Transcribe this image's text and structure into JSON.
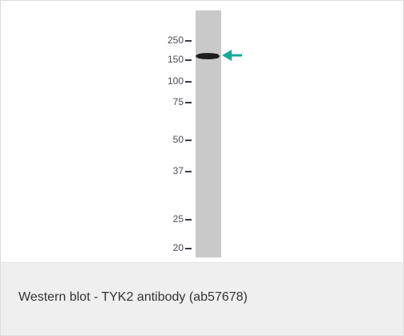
{
  "blot": {
    "markers": [
      250,
      150,
      100,
      75,
      50,
      37,
      25,
      20
    ]
  },
  "caption": "Western blot - TYK2 antibody (ab57678)"
}
